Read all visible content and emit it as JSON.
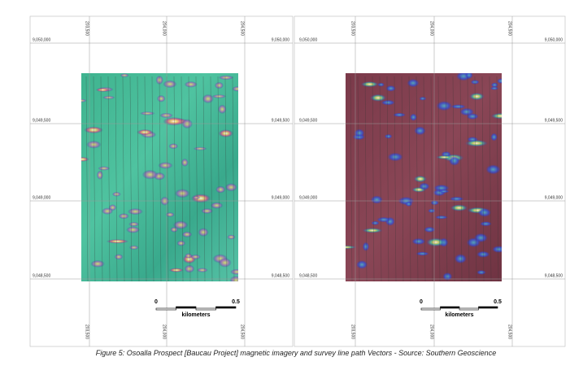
{
  "panels": [
    {
      "eastings": [
        "203,500",
        "204,000",
        "204,500"
      ],
      "northings": [
        "9,050,000",
        "9,049,500",
        "9,049,000",
        "9,048,500"
      ],
      "scale": {
        "start": "0",
        "end": "0.5",
        "unit": "kilometers"
      }
    },
    {
      "eastings": [
        "203,500",
        "204,000",
        "204,500"
      ],
      "northings": [
        "9,050,000",
        "9,049,500",
        "9,049,000",
        "9,048,500"
      ],
      "scale": {
        "start": "0",
        "end": "0.5",
        "unit": "kilometers"
      }
    }
  ],
  "caption": "Figure 5: Osoalla Prospect [Baucau Project] magnetic imagery and survey line path Vectors - Source: Southern Geoscience"
}
